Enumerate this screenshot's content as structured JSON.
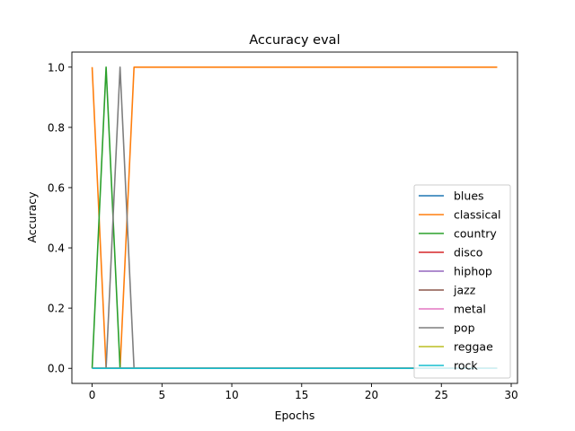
{
  "chart_data": {
    "type": "line",
    "title": "Accuracy eval",
    "xlabel": "Epochs",
    "ylabel": "Accuracy",
    "xlim": [
      -1.45,
      30.45
    ],
    "ylim": [
      -0.05,
      1.05
    ],
    "xticks": [
      0,
      5,
      10,
      15,
      20,
      25,
      30
    ],
    "yticks": [
      0.0,
      0.2,
      0.4,
      0.6,
      0.8,
      1.0
    ],
    "xtick_labels": [
      "0",
      "5",
      "10",
      "15",
      "20",
      "25",
      "30"
    ],
    "ytick_labels": [
      "0.0",
      "0.2",
      "0.4",
      "0.6",
      "0.8",
      "1.0"
    ],
    "grid": false,
    "legend_position": "lower-right",
    "x": [
      0,
      1,
      2,
      3,
      4,
      5,
      6,
      7,
      8,
      9,
      10,
      11,
      12,
      13,
      14,
      15,
      16,
      17,
      18,
      19,
      20,
      21,
      22,
      23,
      24,
      25,
      26,
      27,
      28,
      29
    ],
    "series": [
      {
        "name": "blues",
        "color": "#1f77b4",
        "values": [
          0,
          0,
          0,
          0,
          0,
          0,
          0,
          0,
          0,
          0,
          0,
          0,
          0,
          0,
          0,
          0,
          0,
          0,
          0,
          0,
          0,
          0,
          0,
          0,
          0,
          0,
          0,
          0,
          0,
          0
        ]
      },
      {
        "name": "classical",
        "color": "#ff7f0e",
        "values": [
          1,
          0,
          0,
          1,
          1,
          1,
          1,
          1,
          1,
          1,
          1,
          1,
          1,
          1,
          1,
          1,
          1,
          1,
          1,
          1,
          1,
          1,
          1,
          1,
          1,
          1,
          1,
          1,
          1,
          1
        ]
      },
      {
        "name": "country",
        "color": "#2ca02c",
        "values": [
          0,
          1,
          0,
          0,
          0,
          0,
          0,
          0,
          0,
          0,
          0,
          0,
          0,
          0,
          0,
          0,
          0,
          0,
          0,
          0,
          0,
          0,
          0,
          0,
          0,
          0,
          0,
          0,
          0,
          0
        ]
      },
      {
        "name": "disco",
        "color": "#d62728",
        "values": [
          0,
          0,
          0,
          0,
          0,
          0,
          0,
          0,
          0,
          0,
          0,
          0,
          0,
          0,
          0,
          0,
          0,
          0,
          0,
          0,
          0,
          0,
          0,
          0,
          0,
          0,
          0,
          0,
          0,
          0
        ]
      },
      {
        "name": "hiphop",
        "color": "#9467bd",
        "values": [
          0,
          0,
          0,
          0,
          0,
          0,
          0,
          0,
          0,
          0,
          0,
          0,
          0,
          0,
          0,
          0,
          0,
          0,
          0,
          0,
          0,
          0,
          0,
          0,
          0,
          0,
          0,
          0,
          0,
          0
        ]
      },
      {
        "name": "jazz",
        "color": "#8c564b",
        "values": [
          0,
          0,
          0,
          0,
          0,
          0,
          0,
          0,
          0,
          0,
          0,
          0,
          0,
          0,
          0,
          0,
          0,
          0,
          0,
          0,
          0,
          0,
          0,
          0,
          0,
          0,
          0,
          0,
          0,
          0
        ]
      },
      {
        "name": "metal",
        "color": "#e377c2",
        "values": [
          0,
          0,
          0,
          0,
          0,
          0,
          0,
          0,
          0,
          0,
          0,
          0,
          0,
          0,
          0,
          0,
          0,
          0,
          0,
          0,
          0,
          0,
          0,
          0,
          0,
          0,
          0,
          0,
          0,
          0
        ]
      },
      {
        "name": "pop",
        "color": "#7f7f7f",
        "values": [
          0,
          0,
          1,
          0,
          0,
          0,
          0,
          0,
          0,
          0,
          0,
          0,
          0,
          0,
          0,
          0,
          0,
          0,
          0,
          0,
          0,
          0,
          0,
          0,
          0,
          0,
          0,
          0,
          0,
          0
        ]
      },
      {
        "name": "reggae",
        "color": "#bcbd22",
        "values": [
          0,
          0,
          0,
          0,
          0,
          0,
          0,
          0,
          0,
          0,
          0,
          0,
          0,
          0,
          0,
          0,
          0,
          0,
          0,
          0,
          0,
          0,
          0,
          0,
          0,
          0,
          0,
          0,
          0,
          0
        ]
      },
      {
        "name": "rock",
        "color": "#17becf",
        "values": [
          0,
          0,
          0,
          0,
          0,
          0,
          0,
          0,
          0,
          0,
          0,
          0,
          0,
          0,
          0,
          0,
          0,
          0,
          0,
          0,
          0,
          0,
          0,
          0,
          0,
          0,
          0,
          0,
          0,
          0
        ]
      }
    ]
  }
}
